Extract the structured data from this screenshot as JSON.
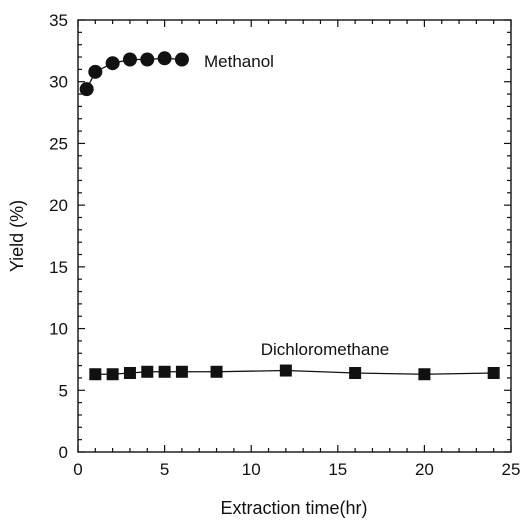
{
  "chart_data": {
    "type": "scatter",
    "xlabel": "Extraction time(hr)",
    "ylabel": "Yield (%)",
    "xlim": [
      0,
      25
    ],
    "ylim": [
      0,
      35
    ],
    "x_ticks": [
      0,
      5,
      10,
      15,
      20,
      25
    ],
    "y_ticks": [
      0,
      5,
      10,
      15,
      20,
      25,
      30,
      35
    ],
    "grid": false,
    "series": [
      {
        "name": "Methanol",
        "marker": "circle",
        "line": true,
        "color": "#111111",
        "x": [
          0.5,
          1,
          2,
          3,
          4,
          5,
          6
        ],
        "y": [
          29.4,
          30.8,
          31.5,
          31.8,
          31.8,
          31.9,
          31.8
        ]
      },
      {
        "name": "Dichloromethane",
        "marker": "square",
        "line": true,
        "color": "#111111",
        "x": [
          1,
          2,
          3,
          4,
          5,
          6,
          8,
          12,
          16,
          20,
          24
        ],
        "y": [
          6.3,
          6.3,
          6.4,
          6.5,
          6.5,
          6.5,
          6.5,
          6.6,
          6.4,
          6.3,
          6.4
        ]
      }
    ]
  }
}
